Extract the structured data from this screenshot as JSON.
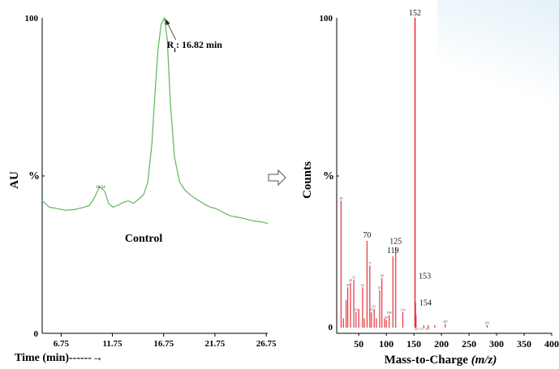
{
  "colors": {
    "chromatogram": "#5cb85c",
    "spectrum": "#e8323a",
    "axis": "#000000",
    "arrow": "#555555"
  },
  "chart_data": [
    {
      "type": "line",
      "title": "",
      "xlabel": "Time (min)------→",
      "ylabel": "AU",
      "y_mid_label": "%",
      "xlim": [
        4.9,
        26.9
      ],
      "ylim": [
        0,
        100
      ],
      "x_ticks": [
        6.75,
        11.75,
        16.75,
        21.75,
        26.75
      ],
      "y_ticks": [
        "0",
        "100"
      ],
      "annotations": [
        {
          "text": "Control",
          "x": 14.8,
          "y": 29
        },
        {
          "text": "10.54",
          "x": 10.6,
          "y": 46
        },
        {
          "text": "Rt: 16.82 min",
          "points_to": [
            16.82,
            100
          ]
        }
      ],
      "series": [
        {
          "x": [
            4.9,
            5.6,
            6.4,
            7.2,
            8.0,
            8.8,
            9.5,
            10.0,
            10.5,
            11.0,
            11.4,
            11.8,
            12.3,
            12.8,
            13.3,
            13.8,
            14.3,
            14.8,
            15.2,
            15.6,
            15.9,
            16.2,
            16.5,
            16.82,
            17.1,
            17.4,
            17.8,
            18.3,
            18.8,
            19.3,
            19.8,
            20.3,
            20.8,
            21.3,
            21.8,
            22.3,
            22.8,
            23.3,
            23.8,
            24.3,
            24.8,
            25.3,
            25.8,
            26.3,
            26.9
          ],
          "values": [
            42,
            40,
            39.5,
            39,
            39.2,
            39.8,
            40.5,
            43,
            46.5,
            45,
            41,
            40,
            40.6,
            41.5,
            42,
            41.2,
            42.5,
            44,
            48,
            60,
            76,
            90,
            98,
            100,
            93,
            73,
            56,
            48,
            45.5,
            44,
            42.8,
            41.8,
            40.8,
            40,
            39.6,
            38.8,
            37.9,
            37.2,
            36.9,
            36.6,
            36.2,
            35.8,
            35.5,
            35.3,
            34.8
          ]
        }
      ]
    },
    {
      "type": "bar",
      "title": "",
      "xlabel": "Mass-to-Charge (m/z)",
      "ylabel": "Counts",
      "y_mid_label": "%",
      "xlim": [
        10,
        400
      ],
      "ylim": [
        0,
        100
      ],
      "x_ticks": [
        50,
        100,
        150,
        200,
        250,
        300,
        350,
        400
      ],
      "y_ticks": [
        "0",
        "100"
      ],
      "peaks": [
        {
          "mz": 18,
          "value": 41,
          "label": "28"
        },
        {
          "mz": 22,
          "value": 3,
          "label": ""
        },
        {
          "mz": 27,
          "value": 9,
          "label": ""
        },
        {
          "mz": 30,
          "value": 13,
          "label": "38"
        },
        {
          "mz": 35,
          "value": 14.5,
          "label": "40"
        },
        {
          "mz": 41,
          "value": 15.5,
          "label": "53"
        },
        {
          "mz": 45,
          "value": 5,
          "label": "54"
        },
        {
          "mz": 50,
          "value": 6,
          "label": ""
        },
        {
          "mz": 57,
          "value": 13,
          "label": "63"
        },
        {
          "mz": 60,
          "value": 3,
          "label": ""
        },
        {
          "mz": 65,
          "value": 28,
          "label": "70"
        },
        {
          "mz": 70,
          "value": 20,
          "label": "71"
        },
        {
          "mz": 73,
          "value": 5,
          "label": "76"
        },
        {
          "mz": 78,
          "value": 6,
          "label": "81"
        },
        {
          "mz": 82,
          "value": 3,
          "label": ""
        },
        {
          "mz": 88,
          "value": 12,
          "label": "87"
        },
        {
          "mz": 92,
          "value": 16,
          "label": "98"
        },
        {
          "mz": 97,
          "value": 3,
          "label": ""
        },
        {
          "mz": 100,
          "value": 2.5,
          "label": "99"
        },
        {
          "mz": 105,
          "value": 4,
          "label": "108"
        },
        {
          "mz": 112,
          "value": 23,
          "label": "119"
        },
        {
          "mz": 117,
          "value": 26,
          "label": "125"
        },
        {
          "mz": 130,
          "value": 5,
          "label": "134"
        },
        {
          "mz": 152,
          "value": 100,
          "label": "152"
        },
        {
          "mz": 153,
          "value": 8,
          "label": "153"
        },
        {
          "mz": 154,
          "value": 4,
          "label": "154"
        },
        {
          "mz": 168,
          "value": 0.8,
          "label": ""
        },
        {
          "mz": 176,
          "value": 0.8,
          "label": ""
        },
        {
          "mz": 188,
          "value": 0.8,
          "label": ""
        },
        {
          "mz": 207,
          "value": 1.2,
          "label": "207"
        },
        {
          "mz": 283,
          "value": 0.8,
          "label": "281"
        }
      ],
      "peak_labels_shown": [
        "70",
        "119",
        "125",
        "152",
        "153",
        "154"
      ],
      "small_annotation": "165 177 187"
    }
  ]
}
